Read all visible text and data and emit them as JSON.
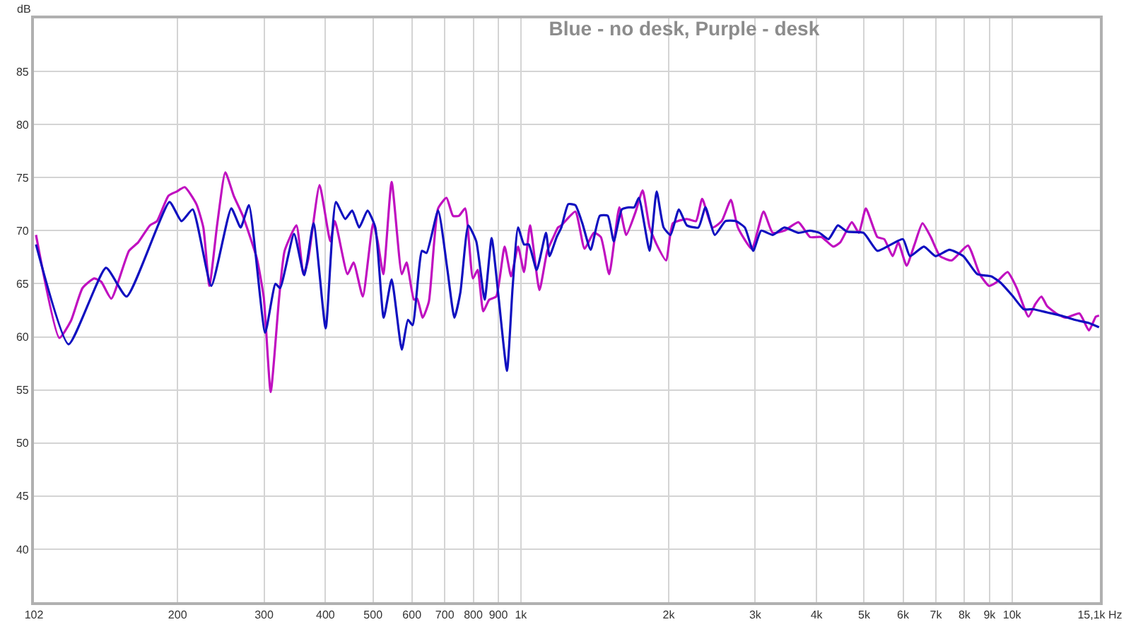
{
  "chart_data": {
    "type": "line",
    "title": "Blue - no desk, Purple - desk",
    "ylabel": "dB",
    "log": "x",
    "grid": true,
    "marker": "none",
    "line_style": "solid",
    "xlim": [
      102,
      15100
    ],
    "ylim": [
      35,
      90
    ],
    "xticks": [
      102,
      200,
      300,
      400,
      500,
      600,
      700,
      800,
      900,
      {
        "value": 1000,
        "label": "1k"
      },
      {
        "value": 2000,
        "label": "2k"
      },
      {
        "value": 3000,
        "label": "3k"
      },
      {
        "value": 4000,
        "label": "4k"
      },
      {
        "value": 5000,
        "label": "5k"
      },
      {
        "value": 6000,
        "label": "6k"
      },
      {
        "value": 7000,
        "label": "7k"
      },
      {
        "value": 8000,
        "label": "8k"
      },
      {
        "value": 9000,
        "label": "9k"
      },
      {
        "value": 10000,
        "label": "10k"
      },
      {
        "value": 15100,
        "label": "15,1k Hz"
      }
    ],
    "yticks": [
      40,
      45,
      50,
      55,
      60,
      65,
      70,
      75,
      80,
      85
    ],
    "series": [
      {
        "color": "#c010c0",
        "x": [
          103,
          114.9,
          121.3,
          128.1,
          135.3,
          139.8,
          146.6,
          159.3,
          166.3,
          175.7,
          181.6,
          191.7,
          199.4,
          206.9,
          218.5,
          225.7,
          232.2,
          241,
          250.2,
          260.2,
          271.6,
          290,
          299.6,
          309.5,
          322,
          330.4,
          349.2,
          360.8,
          368.7,
          389.2,
          409.3,
          418.2,
          443.6,
          456.5,
          476.6,
          500.2,
          511.1,
          524.8,
          545.7,
          572.3,
          585.3,
          605.8,
          615,
          631.2,
          649.6,
          678.5,
          705.7,
          727.4,
          748.2,
          770,
          798.7,
          816.8,
          838.3,
          862.2,
          891,
          926.6,
          955.4,
          987,
          1015,
          1044,
          1091,
          1132,
          1165,
          1190,
          1209,
          1291,
          1348,
          1408,
          1455,
          1513,
          1587,
          1639,
          1713,
          1770,
          1829,
          1890,
          1975,
          2040,
          2178,
          2273,
          2340,
          2455,
          2564,
          2677,
          2766,
          2953,
          3120,
          3257,
          3440,
          3674,
          3879,
          4096,
          4326,
          4470,
          4720,
          4878,
          5040,
          5320,
          5495,
          5716,
          5867,
          6101,
          6332,
          6572,
          6835,
          7137,
          7540,
          8134,
          8596,
          8975,
          9273,
          9795,
          10225,
          10805,
          11162,
          11482,
          11786,
          12313,
          12855,
          13723,
          14342,
          14817,
          15040
        ],
        "values": [
          69.6,
          59.9,
          61.5,
          64.6,
          65.5,
          65.2,
          63.6,
          68.1,
          68.9,
          70.5,
          70.9,
          73.3,
          73.7,
          74.1,
          72.5,
          70.3,
          64.8,
          70.7,
          75.5,
          73.3,
          71.4,
          67.4,
          63.7,
          54.8,
          63.7,
          68.1,
          70.5,
          65.9,
          67.2,
          74.3,
          69.0,
          70.9,
          65.9,
          67.0,
          63.8,
          70.7,
          69.0,
          65.9,
          74.6,
          65.9,
          67.0,
          63.5,
          63.6,
          61.8,
          63.3,
          72.1,
          73.1,
          71.4,
          71.4,
          72.1,
          65.5,
          66.3,
          62.4,
          63.5,
          63.8,
          68.5,
          65.7,
          68.5,
          66.1,
          70.5,
          64.4,
          68.1,
          69.4,
          70.3,
          70.5,
          71.8,
          68.3,
          69.8,
          69.4,
          65.9,
          72.2,
          69.6,
          71.8,
          73.8,
          70.3,
          68.7,
          67.2,
          70.7,
          71.1,
          70.9,
          73.0,
          70.3,
          70.9,
          72.9,
          70.3,
          68.3,
          71.8,
          69.8,
          70.0,
          70.8,
          69.4,
          69.4,
          68.5,
          68.9,
          70.8,
          69.8,
          72.1,
          69.4,
          69.2,
          67.6,
          68.9,
          66.7,
          68.7,
          70.7,
          69.4,
          67.6,
          67.2,
          68.6,
          65.9,
          64.8,
          65.1,
          66.1,
          64.6,
          61.9,
          63.1,
          63.8,
          62.9,
          62.2,
          61.8,
          62.2,
          60.6,
          61.9,
          62.0
        ]
      },
      {
        "color": "#1010c0",
        "x": [
          103,
          120,
          143,
          157.5,
          192.6,
          203.7,
          214.7,
          234.3,
          257.3,
          268.8,
          279.5,
          301.6,
          316.5,
          323.4,
          345.3,
          362.2,
          378.4,
          400.5,
          420.1,
          438.9,
          453.5,
          468.6,
          487.4,
          505.5,
          525.7,
          545.7,
          572.3,
          589.1,
          602,
          629,
          642.7,
          678.5,
          708.8,
          732.3,
          753.2,
          781.6,
          811.3,
          843.9,
          872,
          901,
          937,
          962,
          987,
          1015,
          1038,
          1077,
          1125,
          1144,
          1183,
          1209,
          1249,
          1291,
          1334,
          1387,
          1448,
          1503,
          1546,
          1605,
          1658,
          1701,
          1739,
          1829,
          1890,
          1953,
          2017,
          2098,
          2178,
          2299,
          2376,
          2483,
          2609,
          2738,
          2858,
          2972,
          3085,
          3257,
          3440,
          3674,
          3879,
          4053,
          4231,
          4421,
          4619,
          4984,
          5320,
          5620,
          5999,
          6198,
          6616,
          6984,
          7457,
          7962,
          8501,
          9076,
          9480,
          10010,
          10566,
          11040,
          11786,
          12583,
          13433,
          14342,
          15040
        ],
        "values": [
          68.7,
          59.3,
          66.5,
          63.8,
          72.7,
          70.9,
          72.0,
          64.8,
          72.1,
          70.3,
          72.4,
          60.4,
          65.0,
          64.6,
          69.7,
          65.8,
          70.7,
          60.8,
          72.7,
          71.1,
          71.9,
          70.3,
          71.9,
          70.3,
          61.8,
          65.4,
          58.8,
          61.6,
          61.1,
          68.1,
          67.9,
          71.9,
          66.3,
          61.8,
          64.2,
          70.5,
          69.0,
          63.5,
          69.3,
          63.7,
          56.8,
          64.6,
          70.3,
          68.7,
          68.7,
          66.3,
          69.8,
          67.6,
          69.4,
          70.3,
          72.5,
          72.4,
          70.7,
          68.2,
          71.4,
          71.4,
          69.0,
          72.0,
          72.2,
          72.2,
          73.1,
          68.1,
          73.7,
          70.3,
          69.6,
          72.0,
          70.5,
          70.3,
          72.2,
          69.6,
          70.9,
          70.9,
          70.3,
          68.1,
          70.0,
          69.6,
          70.3,
          69.8,
          70.0,
          69.8,
          69.2,
          70.5,
          69.9,
          69.8,
          68.1,
          68.6,
          69.2,
          67.6,
          68.5,
          67.6,
          68.2,
          67.6,
          65.9,
          65.7,
          65.1,
          63.9,
          62.6,
          62.6,
          62.3,
          62.0,
          61.6,
          61.3,
          60.9
        ]
      }
    ]
  }
}
